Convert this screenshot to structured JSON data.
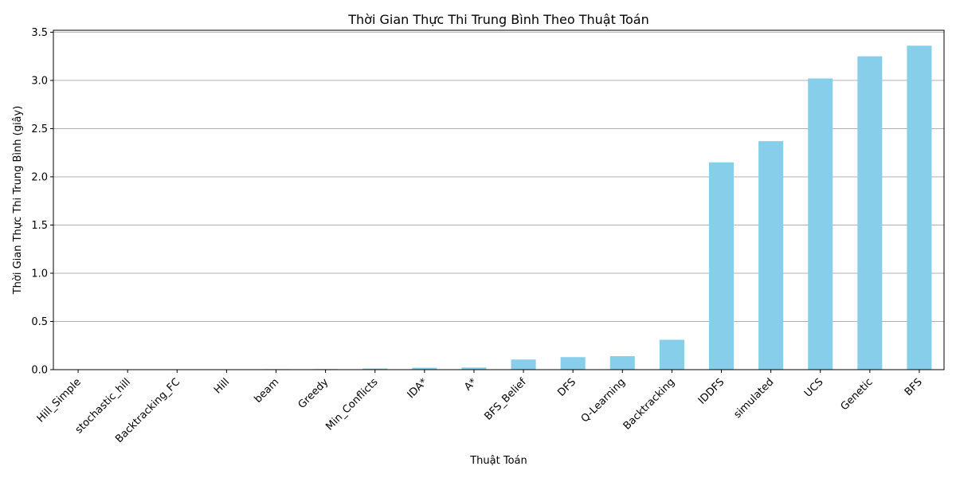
{
  "chart_data": {
    "type": "bar",
    "title": "Thời Gian Thực Thi Trung Bình Theo Thuật Toán",
    "xlabel": "Thuật Toán",
    "ylabel": "Thời Gian Thực Thi Trung Bình (giây)",
    "categories": [
      "Hill_Simple",
      "stochastic_hill",
      "Backtracking_FC",
      "Hill",
      "beam",
      "Greedy",
      "Min_Conflicts",
      "IDA*",
      "A*",
      "BFS_Belief",
      "DFS",
      "Q-Learning",
      "Backtracking",
      "IDDFS",
      "simulated",
      "UCS",
      "Genetic",
      "BFS"
    ],
    "values": [
      0.0,
      0.0,
      0.0,
      0.0,
      0.005,
      0.006,
      0.012,
      0.02,
      0.022,
      0.105,
      0.13,
      0.14,
      0.31,
      2.15,
      2.37,
      3.02,
      3.25,
      3.36
    ],
    "ylim": [
      0,
      3.52
    ],
    "yticks": [
      0.0,
      0.5,
      1.0,
      1.5,
      2.0,
      2.5,
      3.0,
      3.5
    ],
    "ytick_labels": [
      "0.0",
      "0.5",
      "1.0",
      "1.5",
      "2.0",
      "2.5",
      "3.0",
      "3.5"
    ],
    "bar_color": "#87ceeb",
    "grid": "y-axis only",
    "legend": "none"
  }
}
